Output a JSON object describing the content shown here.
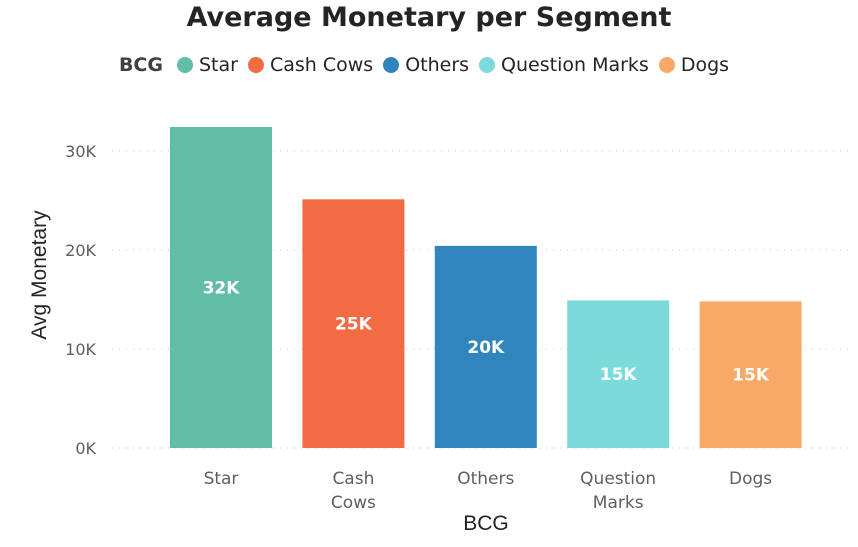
{
  "chart_data": {
    "type": "bar",
    "title": "Average Monetary per Segment",
    "legend_title": "BCG",
    "legend_position": "top-center",
    "categories": [
      "Star",
      "Cash Cows",
      "Others",
      "Question Marks",
      "Dogs"
    ],
    "values": [
      32400,
      25100,
      20400,
      14900,
      14800
    ],
    "data_labels": [
      "32K",
      "25K",
      "20K",
      "15K",
      "15K"
    ],
    "colors": [
      "#61BDA6",
      "#F26B43",
      "#2E86BD",
      "#7ADBDA",
      "#F8A967"
    ],
    "xlabel": "BCG",
    "ylabel": "Avg Monetary",
    "ylim": [
      0,
      32400
    ],
    "yticks": [
      0,
      10000,
      20000,
      30000
    ],
    "ytick_labels": [
      "0K",
      "10K",
      "20K",
      "30K"
    ],
    "grid": true
  }
}
